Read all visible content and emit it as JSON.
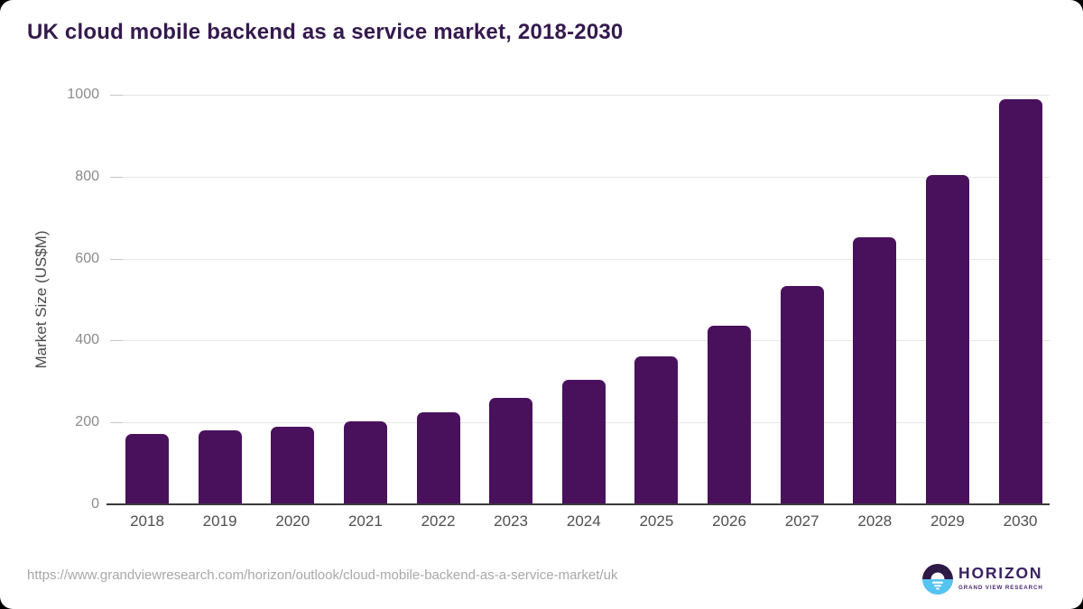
{
  "chart_data": {
    "type": "bar",
    "title": "UK cloud mobile backend as a service market, 2018-2030",
    "ylabel": "Market Size (US$M)",
    "xlabel": "",
    "categories": [
      "2018",
      "2019",
      "2020",
      "2021",
      "2022",
      "2023",
      "2024",
      "2025",
      "2026",
      "2027",
      "2028",
      "2029",
      "2030"
    ],
    "values": [
      172,
      181,
      190,
      203,
      224,
      259,
      304,
      361,
      437,
      533,
      651,
      803,
      988
    ],
    "ylim": [
      0,
      1000
    ],
    "yticks": [
      0,
      200,
      400,
      600,
      800,
      1000
    ],
    "grid": true,
    "legend": false,
    "bar_color": "#49115c"
  },
  "colors": {
    "title_text": "#35194d",
    "axis_line": "#3a3a3a",
    "gridline": "#e6e6e6",
    "y_tick_text": "#8b8b8b",
    "x_tick_text": "#4f4f4f",
    "url_text": "#a8a8a8",
    "logo_purple": "#2e1a47",
    "logo_blue": "#56c4f0",
    "logo_text": "#3b2162"
  },
  "footer": {
    "source_url": "https://www.grandviewresearch.com/horizon/outlook/cloud-mobile-backend-as-a-service-market/uk",
    "logo": {
      "icon": "horizon-sun-icon",
      "brand": "HORIZON",
      "sub_brand": "GRAND VIEW RESEARCH"
    }
  }
}
